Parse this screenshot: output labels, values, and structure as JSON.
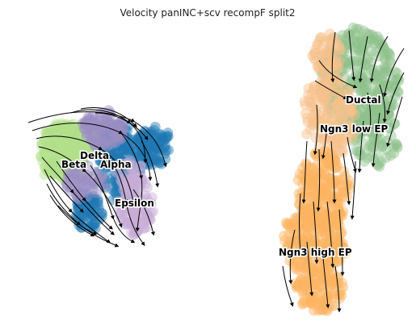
{
  "chart_data": {
    "type": "scatter",
    "title": "Velocity panINC+scv recompF split2",
    "axes_visible": false,
    "grid": false,
    "legend": "on data",
    "overlay": "velocity stream arrows",
    "point_alpha": 0.45,
    "series": [
      {
        "name": "Beta",
        "color": "#b2df8a",
        "groups": [
          {
            "cx": 78,
            "cy": 188,
            "rx": 30,
            "ry": 36,
            "n": 220
          },
          {
            "cx": 110,
            "cy": 175,
            "rx": 34,
            "ry": 22,
            "n": 90
          }
        ]
      },
      {
        "name": "Alpha",
        "color": "#1f78b4",
        "groups": [
          {
            "cx": 150,
            "cy": 200,
            "rx": 28,
            "ry": 50,
            "n": 180
          },
          {
            "cx": 190,
            "cy": 182,
            "rx": 22,
            "ry": 24,
            "n": 90
          },
          {
            "cx": 110,
            "cy": 262,
            "rx": 18,
            "ry": 22,
            "n": 70
          }
        ]
      },
      {
        "name": "Delta",
        "color": "#9b8ec4",
        "groups": [
          {
            "cx": 128,
            "cy": 160,
            "rx": 26,
            "ry": 22,
            "n": 100
          },
          {
            "cx": 105,
            "cy": 225,
            "rx": 24,
            "ry": 22,
            "n": 60
          }
        ]
      },
      {
        "name": "Epsilon",
        "color": "#c8aed6",
        "groups": [
          {
            "cx": 168,
            "cy": 255,
            "rx": 22,
            "ry": 36,
            "n": 120
          },
          {
            "cx": 160,
            "cy": 215,
            "rx": 18,
            "ry": 18,
            "n": 40
          }
        ]
      },
      {
        "name": "Ductal",
        "color": "#8fc08c",
        "groups": [
          {
            "cx": 445,
            "cy": 100,
            "rx": 48,
            "ry": 65,
            "n": 320
          },
          {
            "cx": 465,
            "cy": 170,
            "rx": 30,
            "ry": 40,
            "n": 90
          }
        ]
      },
      {
        "name": "Ngn3 low EP",
        "color": "#f7c08c",
        "groups": [
          {
            "cx": 408,
            "cy": 145,
            "rx": 30,
            "ry": 52,
            "n": 170
          },
          {
            "cx": 405,
            "cy": 70,
            "rx": 18,
            "ry": 30,
            "n": 60
          }
        ]
      },
      {
        "name": "Ngn3 high EP",
        "color": "#fdb462",
        "groups": [
          {
            "cx": 400,
            "cy": 235,
            "rx": 32,
            "ry": 46,
            "n": 200
          },
          {
            "cx": 388,
            "cy": 300,
            "rx": 40,
            "ry": 42,
            "n": 240
          },
          {
            "cx": 395,
            "cy": 360,
            "rx": 30,
            "ry": 28,
            "n": 110
          }
        ]
      }
    ],
    "annotations": [
      {
        "text": "Delta",
        "x": 99,
        "y": 197
      },
      {
        "text": "Beta",
        "x": 76,
        "y": 208
      },
      {
        "text": "Alpha",
        "x": 124,
        "y": 208
      },
      {
        "text": "Epsilon",
        "x": 142,
        "y": 256
      },
      {
        "text": "Ductal",
        "x": 428,
        "y": 128
      },
      {
        "text": "Ngn3 low EP",
        "x": 396,
        "y": 164
      },
      {
        "text": "Ngn3 high EP",
        "x": 345,
        "y": 317
      }
    ]
  }
}
